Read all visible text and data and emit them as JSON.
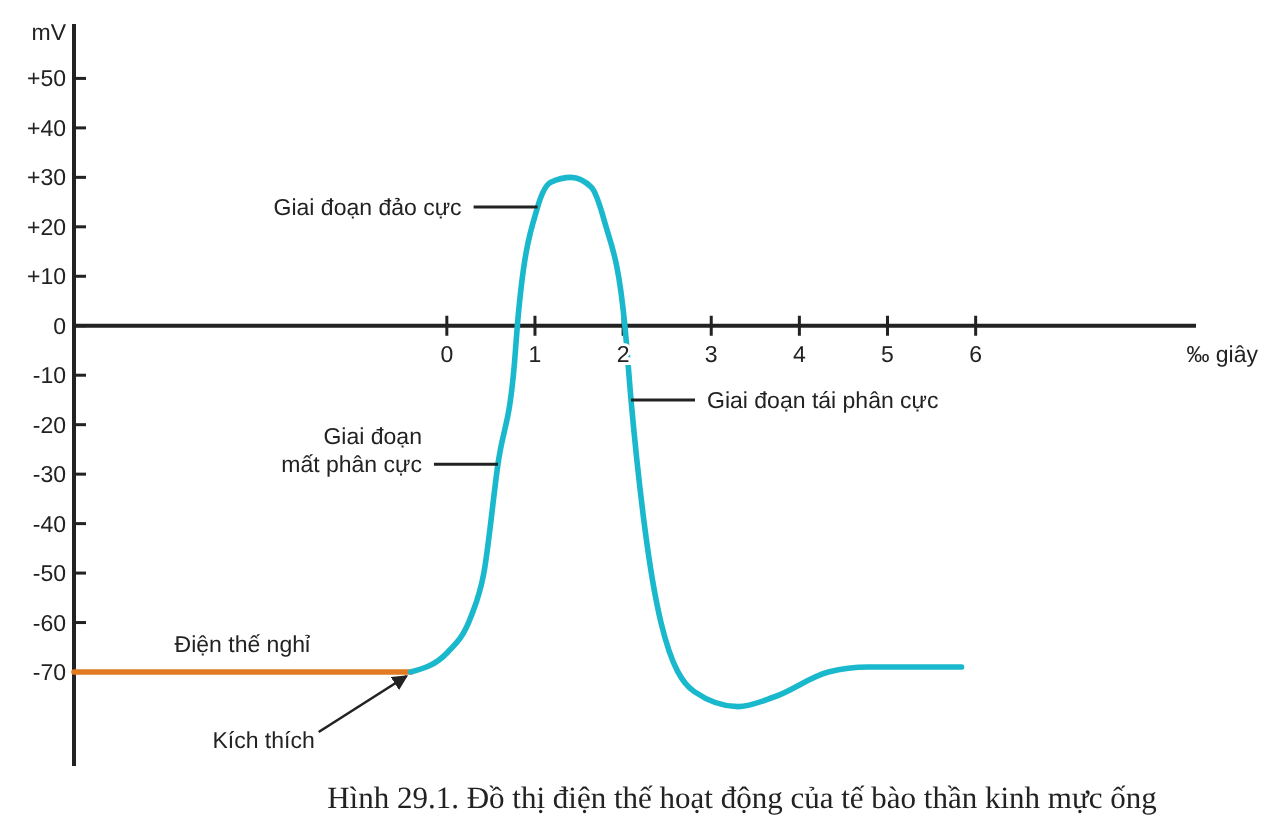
{
  "chart_data": {
    "type": "line",
    "ylabel": "mV",
    "xlabel": "‰ giây",
    "xlim": [
      -4.23,
      8.5
    ],
    "ylim": [
      -89,
      61
    ],
    "xticks": [
      0,
      1,
      2,
      3,
      4,
      5,
      6
    ],
    "yticks": [
      {
        "value": 50,
        "label": "+50"
      },
      {
        "value": 40,
        "label": "+40"
      },
      {
        "value": 30,
        "label": "+30"
      },
      {
        "value": 20,
        "label": "+20"
      },
      {
        "value": 10,
        "label": "+10"
      },
      0,
      -10,
      -20,
      -30,
      -40,
      -50,
      -60,
      -70
    ],
    "series": [
      {
        "name": "Điện thế nghỉ",
        "color": "#e07b22",
        "x": [
          -4.23,
          -0.41
        ],
        "values": [
          -70,
          -70
        ]
      },
      {
        "color": "#1ab8cc",
        "x": [
          -0.41,
          0.01,
          0.27,
          0.42,
          0.58,
          0.77,
          0.8,
          1.03,
          1.18,
          1.41,
          1.64,
          1.79,
          2.02,
          2.09,
          2.24,
          2.43,
          2.81,
          3.3,
          3.72,
          4.33,
          4.78,
          5.84
        ],
        "values": [
          -70,
          -66,
          -59,
          -50,
          -28,
          -7,
          0,
          24,
          29,
          30,
          28,
          21,
          0,
          -15,
          -40,
          -60,
          -74,
          -77,
          -75,
          -70,
          -69,
          -69
        ]
      }
    ],
    "grid": false,
    "marker": "none",
    "line_style": "solid",
    "annotations": [
      {
        "text": "Giai đoạn đảo cực",
        "x": 1.03,
        "y": 24
      },
      {
        "text": "Giai đoạn\nmất phân cực",
        "x": 0.58,
        "y": -28
      },
      {
        "text": "Giai đoạn tái phân cực",
        "x": 2.09,
        "y": -15
      },
      {
        "text": "Kích thích",
        "x": -0.41,
        "y": -70
      },
      "Hình 29.1. Đồ thị điện thế hoạt động của tế bào thần kinh mực ống"
    ]
  }
}
